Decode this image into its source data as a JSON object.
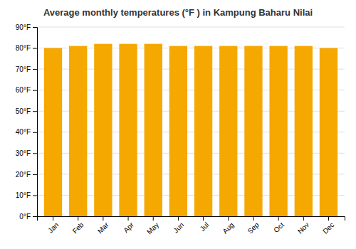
{
  "chart_data": {
    "type": "bar",
    "title": "Average monthly temperatures (°F ) in Kampung Baharu Nilai",
    "categories": [
      "Jan",
      "Feb",
      "Mar",
      "Apr",
      "May",
      "Jun",
      "Jul",
      "Aug",
      "Sep",
      "Oct",
      "Nov",
      "Dec"
    ],
    "values": [
      80,
      81,
      82,
      82,
      82,
      81,
      81,
      81,
      81,
      81,
      81,
      80
    ],
    "color": "#F5A800",
    "ylim": [
      0,
      90
    ],
    "yticks": [
      {
        "value": 0,
        "label": "0°F"
      },
      {
        "value": 10,
        "label": "10°F"
      },
      {
        "value": 20,
        "label": "20°F"
      },
      {
        "value": 30,
        "label": "30°F"
      },
      {
        "value": 40,
        "label": "40°F"
      },
      {
        "value": 50,
        "label": "50°F"
      },
      {
        "value": 60,
        "label": "60°F"
      },
      {
        "value": 70,
        "label": "70°F"
      },
      {
        "value": 80,
        "label": "80°F"
      },
      {
        "value": 90,
        "label": "90°F"
      }
    ],
    "grid": true
  }
}
